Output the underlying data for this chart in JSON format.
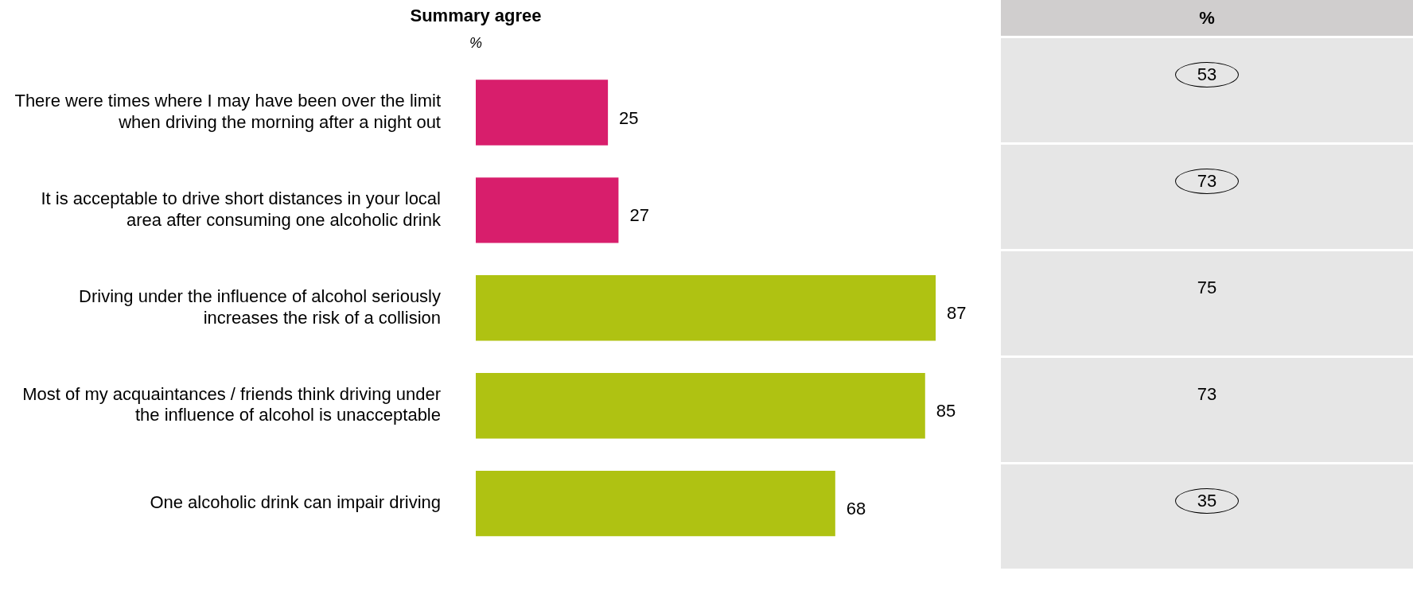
{
  "chart_data": [
    {
      "type": "bar",
      "orientation": "horizontal",
      "title": "Summary agree",
      "subtitle": "%",
      "categories": [
        "There were times where I may have been over the limit when driving the morning after a night out",
        "It is acceptable to drive short distances in your local area after consuming one alcoholic drink",
        "Driving under the influence of alcohol seriously increases the risk of a collision",
        "Most of my acquaintances / friends think driving under the influence of alcohol is unacceptable",
        "One alcoholic drink can impair driving"
      ],
      "values": [
        25,
        27,
        87,
        85,
        68
      ],
      "colors": [
        "#d81e6c",
        "#d81e6c",
        "#afc212",
        "#afc212",
        "#afc212"
      ],
      "data_labels": true,
      "legend": false
    },
    {
      "type": "other",
      "title": "%",
      "annotations": [
        "53",
        "73",
        "75",
        "73",
        "35"
      ]
    }
  ]
}
